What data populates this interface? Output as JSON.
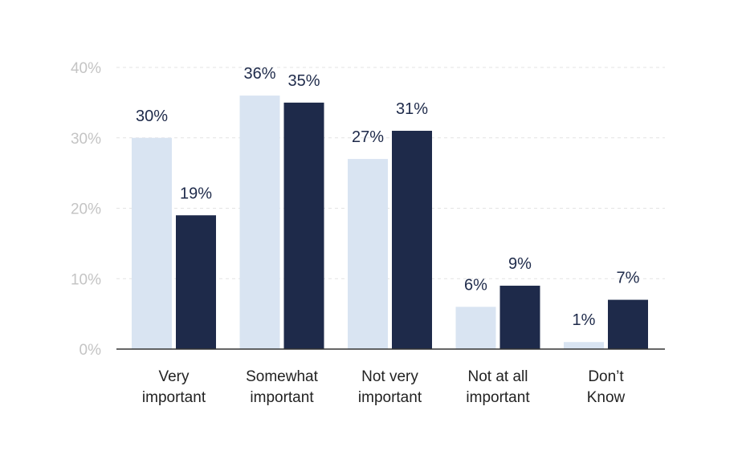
{
  "chart_data": {
    "type": "bar",
    "title": "",
    "xlabel": "",
    "ylabel": "",
    "ylim": [
      0,
      40
    ],
    "yticks": [
      "0%",
      "10%",
      "20%",
      "30%",
      "40%"
    ],
    "grid": true,
    "legend": "none",
    "categories": [
      [
        "Very",
        "important"
      ],
      [
        "Somewhat",
        "important"
      ],
      [
        "Not very",
        "important"
      ],
      [
        "Not at all",
        "important"
      ],
      [
        "Don’t",
        "Know"
      ]
    ],
    "series": [
      {
        "values": [
          30,
          36,
          27,
          6,
          1
        ],
        "labels": [
          "30%",
          "36%",
          "27%",
          "6%",
          "1%"
        ],
        "color": "#d9e4f2"
      },
      {
        "values": [
          19,
          35,
          31,
          9,
          7
        ],
        "labels": [
          "19%",
          "35%",
          "31%",
          "9%",
          "7%"
        ],
        "color": "#1e2a4a"
      }
    ]
  },
  "colors": {
    "light_bar": "#d9e4f2",
    "dark_bar": "#1e2a4a",
    "tick_text": "#c4c4c4",
    "value_text": "#1e2a4a",
    "category_text": "#222222"
  }
}
